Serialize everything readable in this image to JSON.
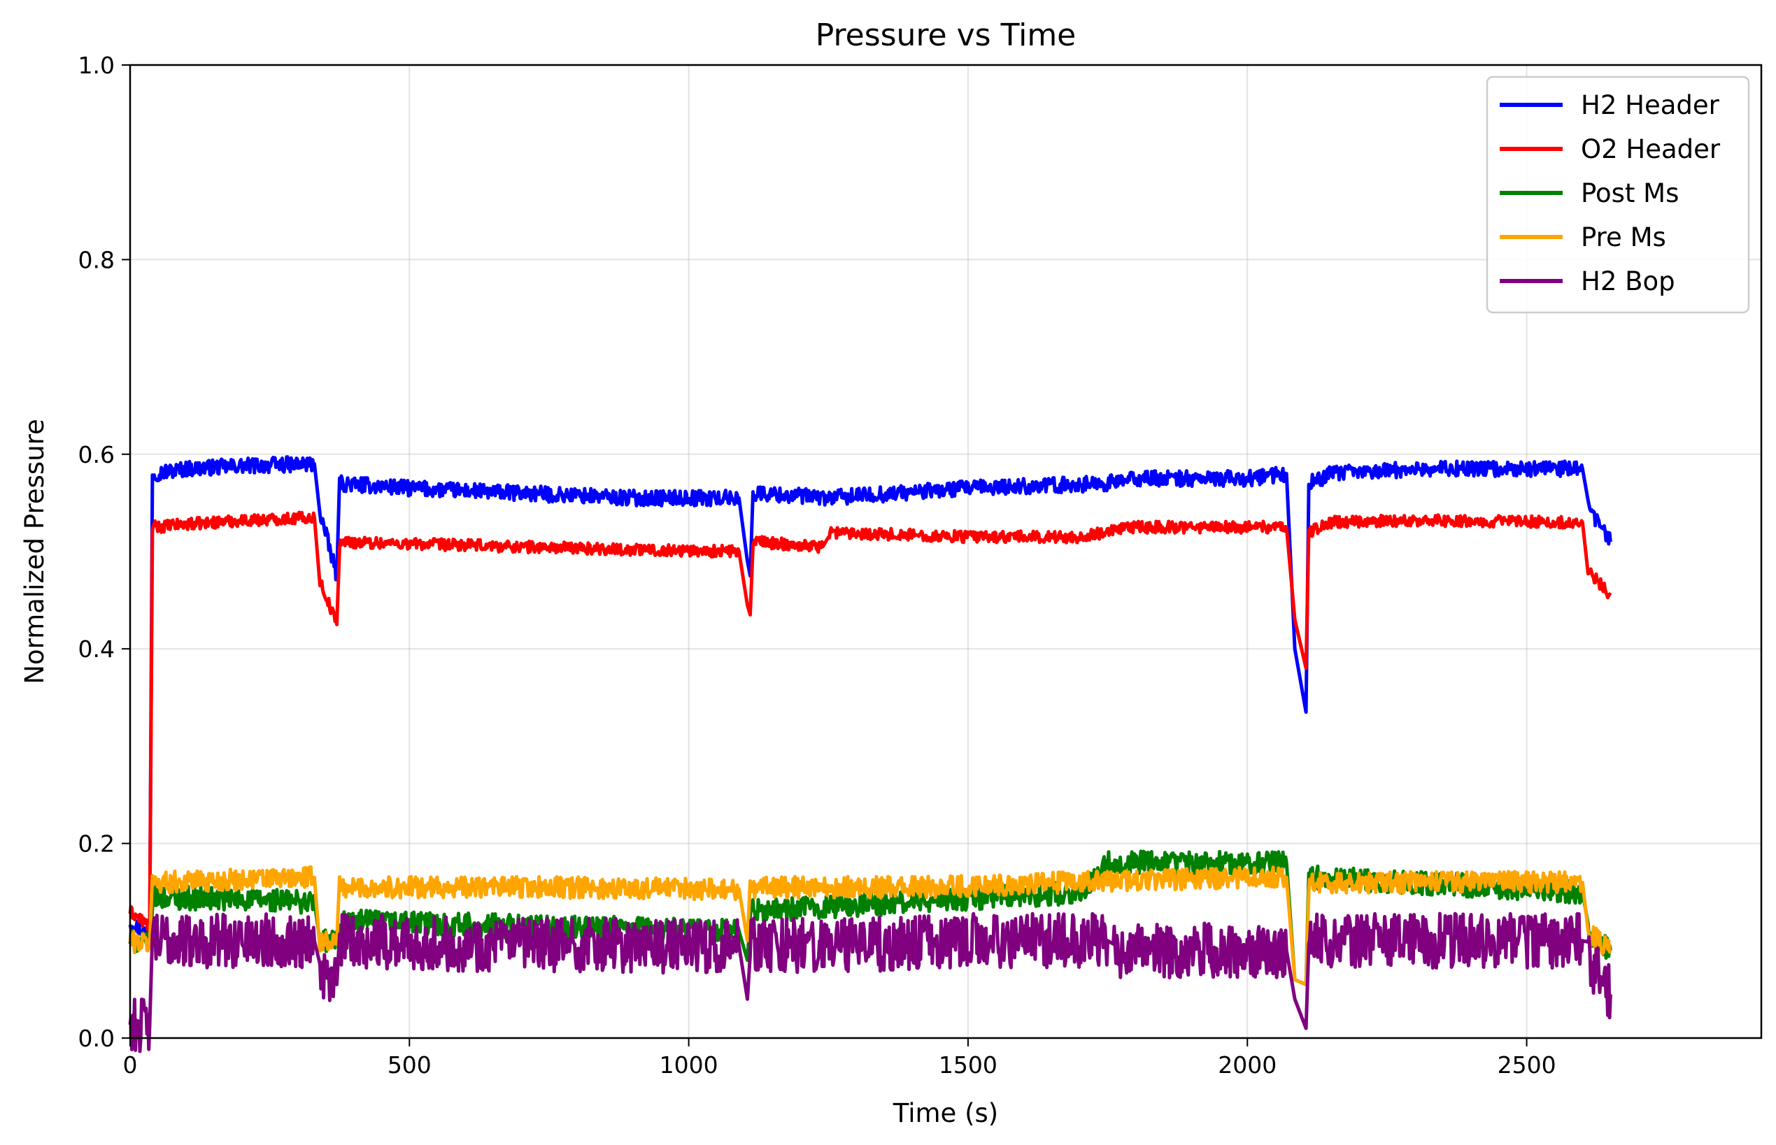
{
  "chart_data": {
    "type": "line",
    "title": "Pressure vs Time",
    "xlabel": "Time (s)",
    "ylabel": "Normalized Pressure",
    "xlim": [
      0,
      2920
    ],
    "ylim": [
      0.0,
      1.0
    ],
    "xticks": [
      0,
      500,
      1000,
      1500,
      2000,
      2500
    ],
    "xtick_labels": [
      "0",
      "500",
      "1000",
      "1500",
      "2000",
      "2500"
    ],
    "yticks": [
      0.0,
      0.2,
      0.4,
      0.6,
      0.8,
      1.0
    ],
    "ytick_labels": [
      "0.0",
      "0.2",
      "0.4",
      "0.6",
      "0.8",
      "1.0"
    ],
    "grid": true,
    "legend_position": "top-right",
    "series": [
      {
        "name": "H2 Header",
        "color": "#0000ff",
        "noise": 0.008,
        "points": [
          [
            0,
            0.12
          ],
          [
            35,
            0.105
          ],
          [
            40,
            0.58
          ],
          [
            100,
            0.585
          ],
          [
            200,
            0.588
          ],
          [
            330,
            0.59
          ],
          [
            340,
            0.54
          ],
          [
            370,
            0.475
          ],
          [
            375,
            0.57
          ],
          [
            500,
            0.565
          ],
          [
            700,
            0.56
          ],
          [
            900,
            0.555
          ],
          [
            1090,
            0.555
          ],
          [
            1105,
            0.49
          ],
          [
            1110,
            0.475
          ],
          [
            1115,
            0.56
          ],
          [
            1250,
            0.555
          ],
          [
            1500,
            0.565
          ],
          [
            1750,
            0.57
          ],
          [
            1800,
            0.575
          ],
          [
            2000,
            0.575
          ],
          [
            2070,
            0.58
          ],
          [
            2085,
            0.4
          ],
          [
            2105,
            0.335
          ],
          [
            2110,
            0.57
          ],
          [
            2150,
            0.58
          ],
          [
            2300,
            0.585
          ],
          [
            2600,
            0.585
          ],
          [
            2610,
            0.545
          ],
          [
            2650,
            0.51
          ]
        ]
      },
      {
        "name": "O2 Header",
        "color": "#ff0000",
        "noise": 0.006,
        "points": [
          [
            0,
            0.13
          ],
          [
            35,
            0.115
          ],
          [
            40,
            0.525
          ],
          [
            100,
            0.528
          ],
          [
            200,
            0.532
          ],
          [
            330,
            0.535
          ],
          [
            340,
            0.47
          ],
          [
            370,
            0.425
          ],
          [
            375,
            0.51
          ],
          [
            500,
            0.508
          ],
          [
            700,
            0.505
          ],
          [
            900,
            0.502
          ],
          [
            1090,
            0.5
          ],
          [
            1105,
            0.445
          ],
          [
            1110,
            0.435
          ],
          [
            1115,
            0.51
          ],
          [
            1240,
            0.505
          ],
          [
            1250,
            0.52
          ],
          [
            1500,
            0.515
          ],
          [
            1700,
            0.515
          ],
          [
            1800,
            0.525
          ],
          [
            2070,
            0.525
          ],
          [
            2085,
            0.43
          ],
          [
            2105,
            0.38
          ],
          [
            2110,
            0.52
          ],
          [
            2150,
            0.53
          ],
          [
            2300,
            0.532
          ],
          [
            2600,
            0.53
          ],
          [
            2610,
            0.48
          ],
          [
            2650,
            0.455
          ]
        ]
      },
      {
        "name": "Post Ms",
        "color": "#008000",
        "noise": 0.012,
        "points": [
          [
            0,
            0.1
          ],
          [
            35,
            0.095
          ],
          [
            40,
            0.145
          ],
          [
            330,
            0.14
          ],
          [
            340,
            0.1
          ],
          [
            370,
            0.1
          ],
          [
            375,
            0.12
          ],
          [
            700,
            0.115
          ],
          [
            1090,
            0.11
          ],
          [
            1105,
            0.08
          ],
          [
            1110,
            0.13
          ],
          [
            1400,
            0.14
          ],
          [
            1700,
            0.15
          ],
          [
            1750,
            0.18
          ],
          [
            2000,
            0.18
          ],
          [
            2070,
            0.18
          ],
          [
            2085,
            0.06
          ],
          [
            2105,
            0.055
          ],
          [
            2110,
            0.165
          ],
          [
            2300,
            0.16
          ],
          [
            2600,
            0.15
          ],
          [
            2610,
            0.11
          ],
          [
            2650,
            0.09
          ]
        ]
      },
      {
        "name": "Pre Ms",
        "color": "#ffa500",
        "noise": 0.011,
        "points": [
          [
            0,
            0.1
          ],
          [
            35,
            0.097
          ],
          [
            40,
            0.16
          ],
          [
            330,
            0.165
          ],
          [
            340,
            0.1
          ],
          [
            370,
            0.1
          ],
          [
            375,
            0.155
          ],
          [
            700,
            0.155
          ],
          [
            1090,
            0.153
          ],
          [
            1105,
            0.1
          ],
          [
            1110,
            0.155
          ],
          [
            1400,
            0.155
          ],
          [
            1700,
            0.16
          ],
          [
            2000,
            0.165
          ],
          [
            2070,
            0.165
          ],
          [
            2085,
            0.06
          ],
          [
            2105,
            0.055
          ],
          [
            2110,
            0.16
          ],
          [
            2300,
            0.16
          ],
          [
            2600,
            0.16
          ],
          [
            2610,
            0.11
          ],
          [
            2650,
            0.09
          ]
        ]
      },
      {
        "name": "H2 Bop",
        "color": "#800080",
        "noise": 0.028,
        "points": [
          [
            0,
            0.015
          ],
          [
            35,
            0.013
          ],
          [
            40,
            0.1
          ],
          [
            330,
            0.1
          ],
          [
            340,
            0.07
          ],
          [
            370,
            0.055
          ],
          [
            375,
            0.1
          ],
          [
            700,
            0.095
          ],
          [
            1090,
            0.095
          ],
          [
            1105,
            0.04
          ],
          [
            1110,
            0.095
          ],
          [
            1250,
            0.095
          ],
          [
            1500,
            0.1
          ],
          [
            1750,
            0.1
          ],
          [
            1760,
            0.09
          ],
          [
            2070,
            0.09
          ],
          [
            2085,
            0.04
          ],
          [
            2105,
            0.01
          ],
          [
            2110,
            0.1
          ],
          [
            2300,
            0.1
          ],
          [
            2600,
            0.1
          ],
          [
            2610,
            0.08
          ],
          [
            2650,
            0.045
          ]
        ]
      }
    ]
  }
}
